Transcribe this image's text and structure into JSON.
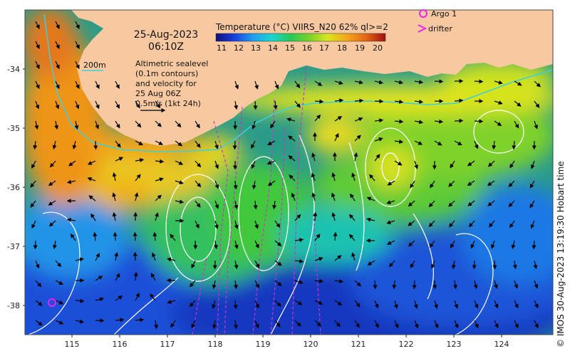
{
  "map": {
    "date": "25-Aug-2023",
    "time": "06:10Z",
    "colorbar_title": "Temperature (°C) VIIRS_N20 62% ql>=2",
    "colorbar_ticks": [
      "11",
      "12",
      "13",
      "14",
      "15",
      "16",
      "17",
      "18",
      "19",
      "20"
    ],
    "colorbar_colors": [
      "#0b0f7a",
      "#1a3fe0",
      "#1ea0f0",
      "#19d6d0",
      "#28c85a",
      "#78d22a",
      "#d8e61e",
      "#f4a71a",
      "#e46a14",
      "#a01010"
    ],
    "isobath_label": "200m",
    "altimetry_lines": [
      "Altimetric sealevel",
      "(0.1m contours)",
      "and velocity for",
      "25 Aug 06Z",
      "0.5m/s (1kt 24h)"
    ],
    "legend": {
      "argo": "Argo 1",
      "drifter": "drifter"
    },
    "lat_ticks": [
      "-34",
      "-35",
      "-36",
      "-37",
      "-38"
    ],
    "lon_ticks": [
      "115",
      "116",
      "117",
      "118",
      "119",
      "120",
      "121",
      "122",
      "123",
      "124"
    ],
    "credit": "© IMOS 30-Aug-2023 13:19:30 Hobart time",
    "colors": {
      "land": "#f8c9a0",
      "isobath": "#3ad0e0",
      "contour": "#ffffff",
      "argo": "#ee22ee",
      "drifter": "#cc33cc"
    }
  }
}
